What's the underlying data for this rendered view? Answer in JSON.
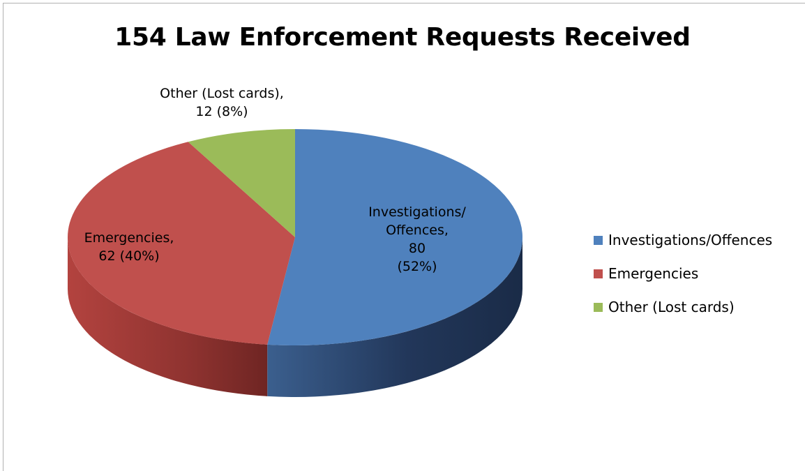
{
  "chart_data": {
    "type": "pie",
    "title": "154 Law Enforcement Requests Received",
    "slices": [
      {
        "name": "Investigations/Offences",
        "value": 80,
        "percent": "52%",
        "color": "#4f81bd",
        "label_lines": [
          "Investigations/",
          "Offences,",
          "80",
          "(52%)"
        ]
      },
      {
        "name": "Emergencies",
        "value": 62,
        "percent": "40%",
        "color": "#c0504d",
        "label_lines": [
          "Emergencies,",
          "62 (40%)"
        ]
      },
      {
        "name": "Other (Lost cards)",
        "value": 12,
        "percent": "8%",
        "color": "#9bbb59",
        "label_lines": [
          "Other (Lost cards),",
          "12 (8%)"
        ]
      }
    ],
    "style": "3d-pie",
    "legend_position": "right"
  }
}
